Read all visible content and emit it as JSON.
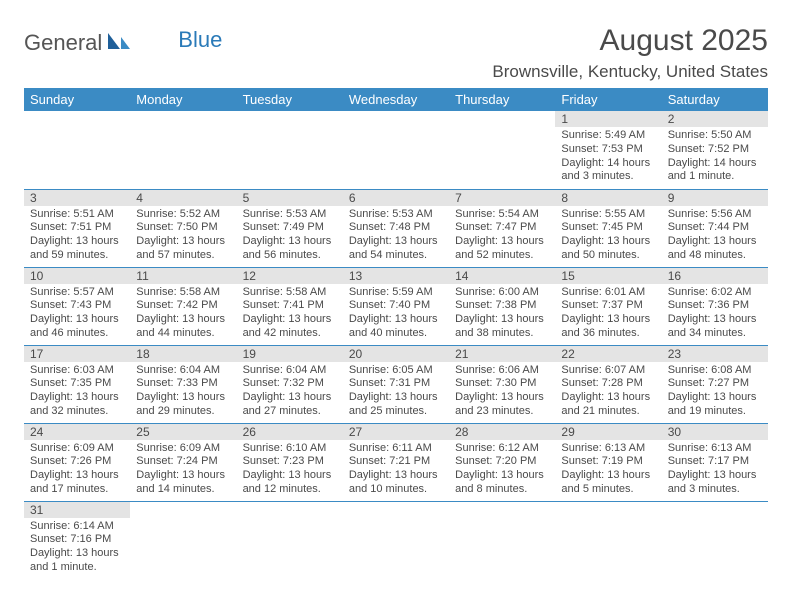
{
  "logo": {
    "general": "General",
    "blue": "Blue"
  },
  "header": {
    "month_title": "August 2025",
    "location": "Brownsville, Kentucky, United States"
  },
  "colors": {
    "header_bg": "#3b8bc4",
    "header_fg": "#ffffff",
    "daynum_bg": "#e4e4e4",
    "row_divider": "#3b8bc4",
    "text": "#4a4a4a",
    "logo_blue": "#2a7ab8"
  },
  "weekdays": [
    "Sunday",
    "Monday",
    "Tuesday",
    "Wednesday",
    "Thursday",
    "Friday",
    "Saturday"
  ],
  "weeks": [
    [
      null,
      null,
      null,
      null,
      null,
      {
        "n": "1",
        "sunrise": "Sunrise: 5:49 AM",
        "sunset": "Sunset: 7:53 PM",
        "daylight": "Daylight: 14 hours and 3 minutes."
      },
      {
        "n": "2",
        "sunrise": "Sunrise: 5:50 AM",
        "sunset": "Sunset: 7:52 PM",
        "daylight": "Daylight: 14 hours and 1 minute."
      }
    ],
    [
      {
        "n": "3",
        "sunrise": "Sunrise: 5:51 AM",
        "sunset": "Sunset: 7:51 PM",
        "daylight": "Daylight: 13 hours and 59 minutes."
      },
      {
        "n": "4",
        "sunrise": "Sunrise: 5:52 AM",
        "sunset": "Sunset: 7:50 PM",
        "daylight": "Daylight: 13 hours and 57 minutes."
      },
      {
        "n": "5",
        "sunrise": "Sunrise: 5:53 AM",
        "sunset": "Sunset: 7:49 PM",
        "daylight": "Daylight: 13 hours and 56 minutes."
      },
      {
        "n": "6",
        "sunrise": "Sunrise: 5:53 AM",
        "sunset": "Sunset: 7:48 PM",
        "daylight": "Daylight: 13 hours and 54 minutes."
      },
      {
        "n": "7",
        "sunrise": "Sunrise: 5:54 AM",
        "sunset": "Sunset: 7:47 PM",
        "daylight": "Daylight: 13 hours and 52 minutes."
      },
      {
        "n": "8",
        "sunrise": "Sunrise: 5:55 AM",
        "sunset": "Sunset: 7:45 PM",
        "daylight": "Daylight: 13 hours and 50 minutes."
      },
      {
        "n": "9",
        "sunrise": "Sunrise: 5:56 AM",
        "sunset": "Sunset: 7:44 PM",
        "daylight": "Daylight: 13 hours and 48 minutes."
      }
    ],
    [
      {
        "n": "10",
        "sunrise": "Sunrise: 5:57 AM",
        "sunset": "Sunset: 7:43 PM",
        "daylight": "Daylight: 13 hours and 46 minutes."
      },
      {
        "n": "11",
        "sunrise": "Sunrise: 5:58 AM",
        "sunset": "Sunset: 7:42 PM",
        "daylight": "Daylight: 13 hours and 44 minutes."
      },
      {
        "n": "12",
        "sunrise": "Sunrise: 5:58 AM",
        "sunset": "Sunset: 7:41 PM",
        "daylight": "Daylight: 13 hours and 42 minutes."
      },
      {
        "n": "13",
        "sunrise": "Sunrise: 5:59 AM",
        "sunset": "Sunset: 7:40 PM",
        "daylight": "Daylight: 13 hours and 40 minutes."
      },
      {
        "n": "14",
        "sunrise": "Sunrise: 6:00 AM",
        "sunset": "Sunset: 7:38 PM",
        "daylight": "Daylight: 13 hours and 38 minutes."
      },
      {
        "n": "15",
        "sunrise": "Sunrise: 6:01 AM",
        "sunset": "Sunset: 7:37 PM",
        "daylight": "Daylight: 13 hours and 36 minutes."
      },
      {
        "n": "16",
        "sunrise": "Sunrise: 6:02 AM",
        "sunset": "Sunset: 7:36 PM",
        "daylight": "Daylight: 13 hours and 34 minutes."
      }
    ],
    [
      {
        "n": "17",
        "sunrise": "Sunrise: 6:03 AM",
        "sunset": "Sunset: 7:35 PM",
        "daylight": "Daylight: 13 hours and 32 minutes."
      },
      {
        "n": "18",
        "sunrise": "Sunrise: 6:04 AM",
        "sunset": "Sunset: 7:33 PM",
        "daylight": "Daylight: 13 hours and 29 minutes."
      },
      {
        "n": "19",
        "sunrise": "Sunrise: 6:04 AM",
        "sunset": "Sunset: 7:32 PM",
        "daylight": "Daylight: 13 hours and 27 minutes."
      },
      {
        "n": "20",
        "sunrise": "Sunrise: 6:05 AM",
        "sunset": "Sunset: 7:31 PM",
        "daylight": "Daylight: 13 hours and 25 minutes."
      },
      {
        "n": "21",
        "sunrise": "Sunrise: 6:06 AM",
        "sunset": "Sunset: 7:30 PM",
        "daylight": "Daylight: 13 hours and 23 minutes."
      },
      {
        "n": "22",
        "sunrise": "Sunrise: 6:07 AM",
        "sunset": "Sunset: 7:28 PM",
        "daylight": "Daylight: 13 hours and 21 minutes."
      },
      {
        "n": "23",
        "sunrise": "Sunrise: 6:08 AM",
        "sunset": "Sunset: 7:27 PM",
        "daylight": "Daylight: 13 hours and 19 minutes."
      }
    ],
    [
      {
        "n": "24",
        "sunrise": "Sunrise: 6:09 AM",
        "sunset": "Sunset: 7:26 PM",
        "daylight": "Daylight: 13 hours and 17 minutes."
      },
      {
        "n": "25",
        "sunrise": "Sunrise: 6:09 AM",
        "sunset": "Sunset: 7:24 PM",
        "daylight": "Daylight: 13 hours and 14 minutes."
      },
      {
        "n": "26",
        "sunrise": "Sunrise: 6:10 AM",
        "sunset": "Sunset: 7:23 PM",
        "daylight": "Daylight: 13 hours and 12 minutes."
      },
      {
        "n": "27",
        "sunrise": "Sunrise: 6:11 AM",
        "sunset": "Sunset: 7:21 PM",
        "daylight": "Daylight: 13 hours and 10 minutes."
      },
      {
        "n": "28",
        "sunrise": "Sunrise: 6:12 AM",
        "sunset": "Sunset: 7:20 PM",
        "daylight": "Daylight: 13 hours and 8 minutes."
      },
      {
        "n": "29",
        "sunrise": "Sunrise: 6:13 AM",
        "sunset": "Sunset: 7:19 PM",
        "daylight": "Daylight: 13 hours and 5 minutes."
      },
      {
        "n": "30",
        "sunrise": "Sunrise: 6:13 AM",
        "sunset": "Sunset: 7:17 PM",
        "daylight": "Daylight: 13 hours and 3 minutes."
      }
    ],
    [
      {
        "n": "31",
        "sunrise": "Sunrise: 6:14 AM",
        "sunset": "Sunset: 7:16 PM",
        "daylight": "Daylight: 13 hours and 1 minute."
      },
      null,
      null,
      null,
      null,
      null,
      null
    ]
  ]
}
